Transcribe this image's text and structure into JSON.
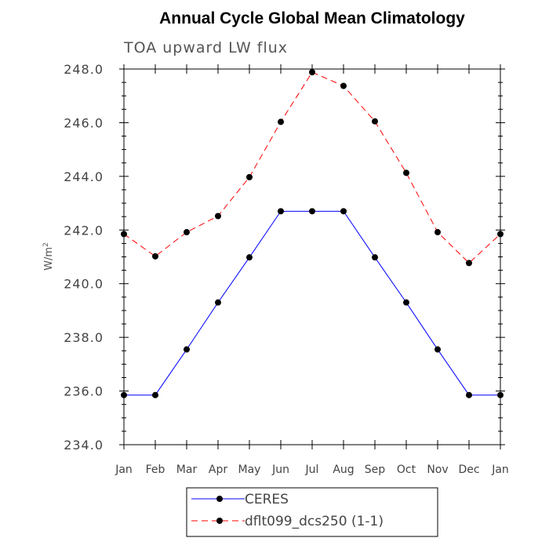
{
  "chart_data": {
    "type": "line",
    "title": "Annual Cycle Global Mean Climatology",
    "subtitle": "TOA upward LW flux",
    "ylabel_base": "W/m",
    "ylabel_sup": "2",
    "xlabel": "",
    "categories": [
      "Jan",
      "Feb",
      "Mar",
      "Apr",
      "May",
      "Jun",
      "Jul",
      "Aug",
      "Sep",
      "Oct",
      "Nov",
      "Dec",
      "Jan"
    ],
    "ylim": [
      234.0,
      248.0
    ],
    "yticks": [
      "234.0",
      "236.0",
      "238.0",
      "240.0",
      "242.0",
      "244.0",
      "246.0",
      "248.0"
    ],
    "ytick_values": [
      234,
      236,
      238,
      240,
      242,
      244,
      246,
      248
    ],
    "grid": false,
    "legend_position": "bottom",
    "series": [
      {
        "name": "CERES",
        "color": "#0000ff",
        "dash": "solid",
        "values": [
          235.85,
          235.85,
          237.55,
          239.3,
          240.98,
          242.7,
          242.7,
          242.7,
          240.98,
          239.3,
          237.55,
          235.85,
          235.85
        ]
      },
      {
        "name": "dflt099_dcs250 (1-1)",
        "color": "#ff0000",
        "dash": "dashed",
        "values": [
          241.85,
          241.02,
          241.92,
          242.52,
          243.97,
          246.03,
          247.88,
          247.37,
          246.05,
          244.13,
          241.92,
          240.77,
          241.85
        ]
      }
    ]
  }
}
